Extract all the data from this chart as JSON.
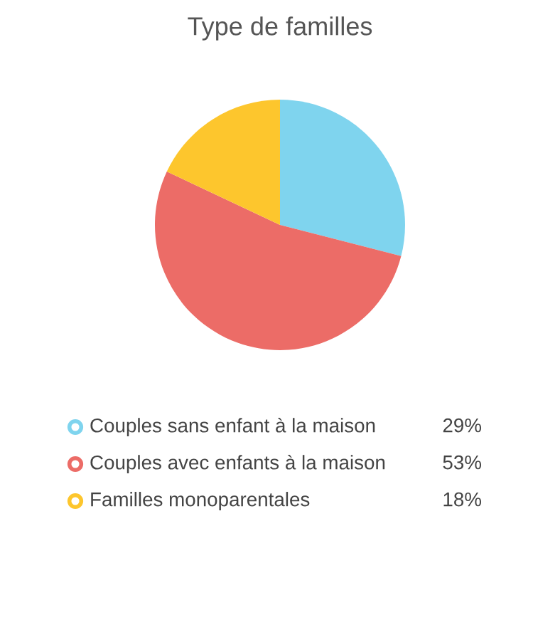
{
  "chart_data": {
    "type": "pie",
    "title": "Type de familles",
    "categories": [
      "Couples sans enfant à la maison",
      "Couples avec enfants à la maison",
      "Familles monoparentales"
    ],
    "values": [
      29,
      53,
      18
    ],
    "colors": [
      "#7fd4ee",
      "#ec6c67",
      "#fdc62d"
    ],
    "value_labels": [
      "29%",
      "53%",
      "18%"
    ],
    "legend": "bottom"
  }
}
